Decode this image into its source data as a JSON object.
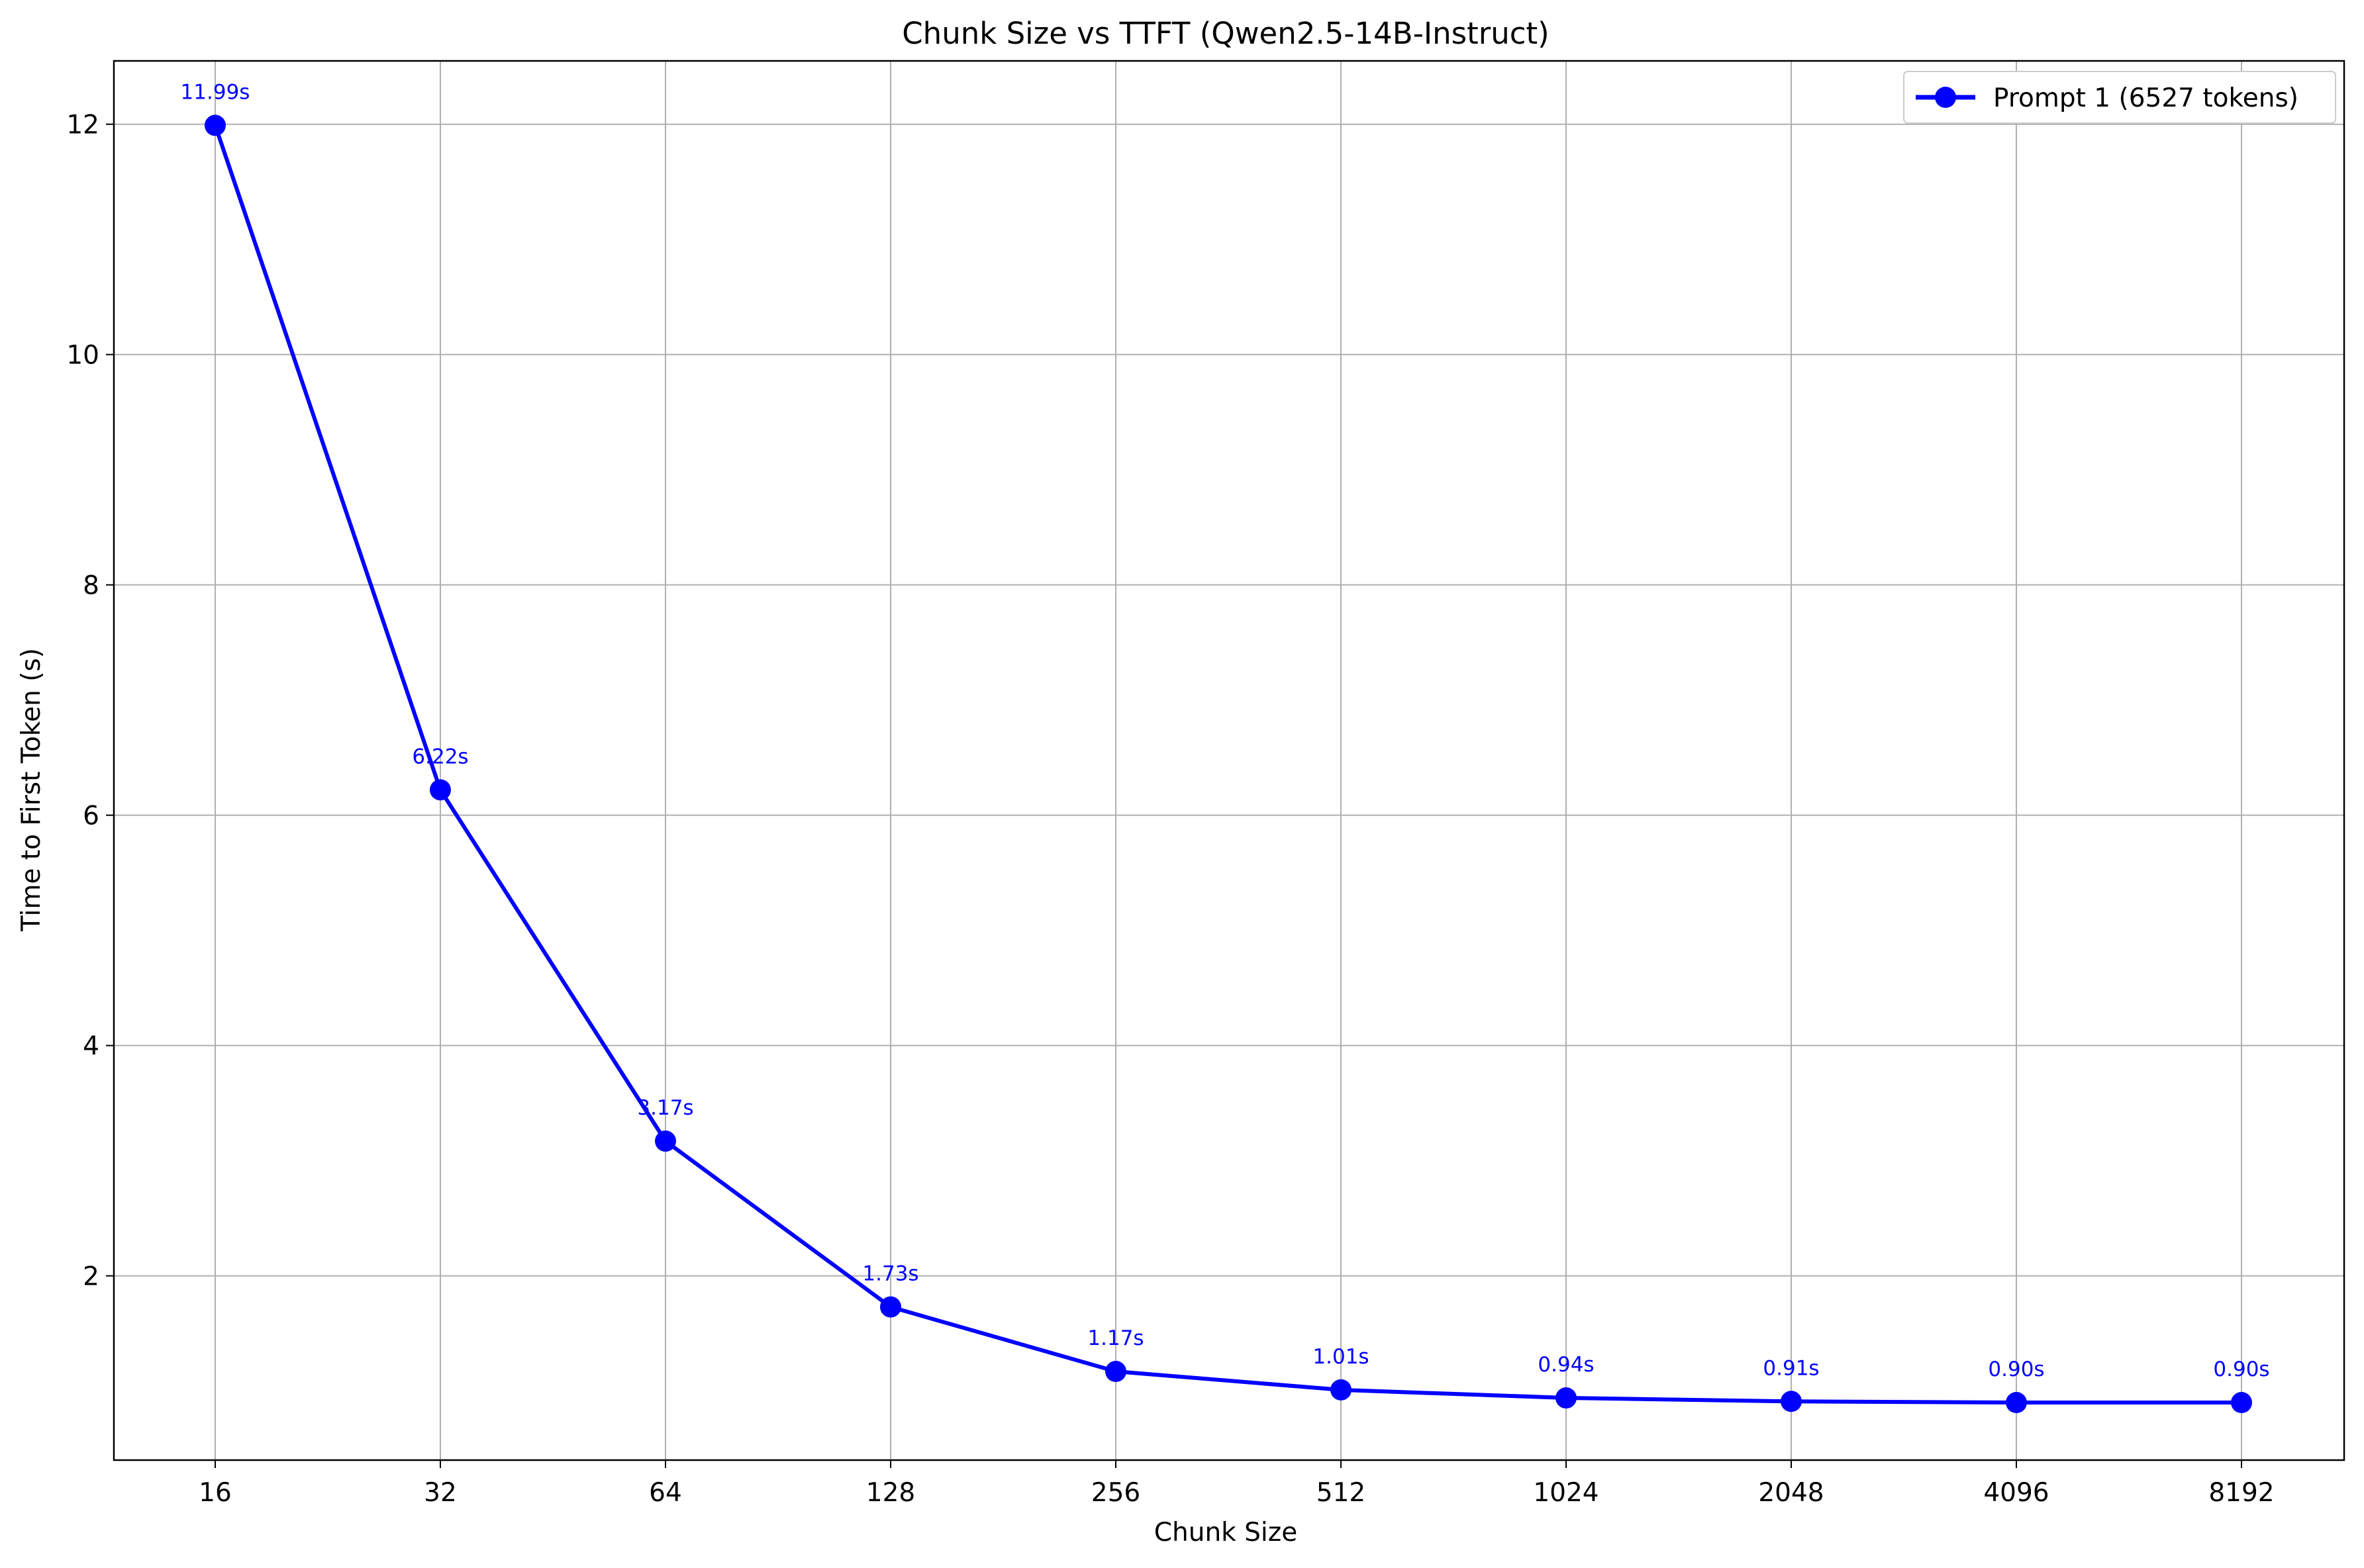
{
  "chart_data": {
    "type": "line",
    "title": "Chunk Size vs TTFT (Qwen2.5-14B-Instruct)",
    "xlabel": "Chunk Size",
    "ylabel": "Time to First Token (s)",
    "x_scale": "log2",
    "categories": [
      "16",
      "32",
      "64",
      "128",
      "256",
      "512",
      "1024",
      "2048",
      "4096",
      "8192"
    ],
    "x": [
      16,
      32,
      64,
      128,
      256,
      512,
      1024,
      2048,
      4096,
      8192
    ],
    "ylim": [
      0.4,
      12.55
    ],
    "y_ticks": [
      2,
      4,
      6,
      8,
      10,
      12
    ],
    "grid": true,
    "legend_position": "top-right",
    "series": [
      {
        "name": "Prompt 1 (6527 tokens)",
        "color": "#0000ff",
        "marker": "circle",
        "values": [
          11.99,
          6.22,
          3.17,
          1.73,
          1.17,
          1.01,
          0.94,
          0.91,
          0.9,
          0.9
        ],
        "data_labels": [
          "11.99s",
          "6.22s",
          "3.17s",
          "1.73s",
          "1.17s",
          "1.01s",
          "0.94s",
          "0.91s",
          "0.90s",
          "0.90s"
        ]
      }
    ]
  }
}
